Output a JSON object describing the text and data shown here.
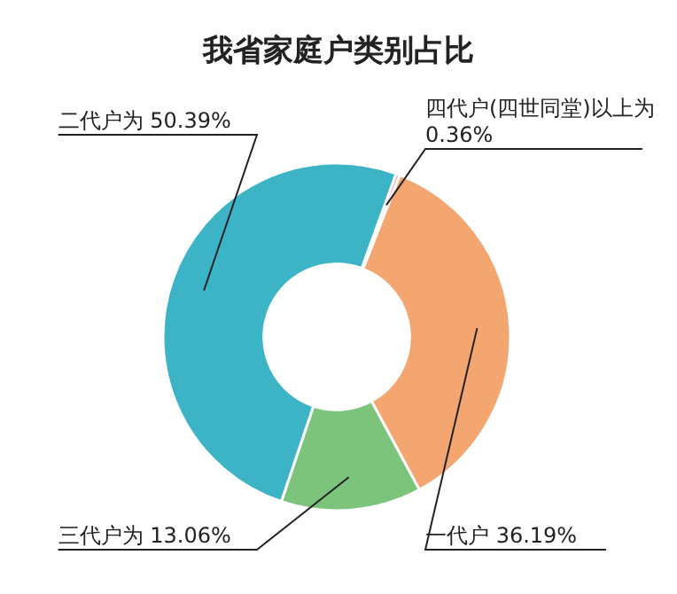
{
  "chart_data": {
    "type": "donut",
    "title": "我省家庭户类别占比",
    "categories": [
      "四代户(四世同堂)以上为",
      "一代户",
      "三代户为",
      "二代户为"
    ],
    "values": [
      0.36,
      36.19,
      13.06,
      50.39
    ],
    "value_labels": [
      "0.36%",
      "36.19%",
      "13.06%",
      "50.39%"
    ],
    "colors": [
      "#e98fc4",
      "#f3a66f",
      "#7cc47c",
      "#3db4c6"
    ]
  }
}
